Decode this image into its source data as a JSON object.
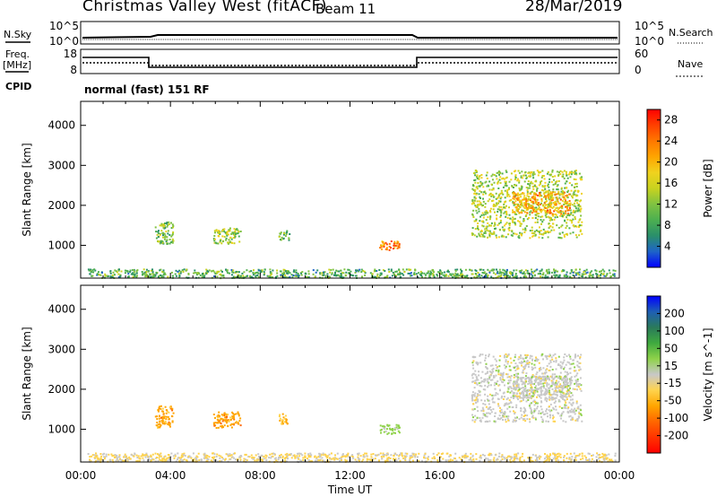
{
  "header": {
    "radar": "Christmas Valley West (fitACF)",
    "beam": "Beam 11",
    "date": "28/Mar/2019"
  },
  "params": {
    "nsky_label": "N.Sky",
    "nsearch_label": "N.Search",
    "freq_label_1": "Freq.",
    "freq_label_2": "[MHz]",
    "nave_label": "Nave",
    "cpid_label": "CPID",
    "cpid_text": "normal (fast) 151 RF",
    "noise_ticks_left": [
      "10^5",
      "10^0"
    ],
    "noise_ticks_right": [
      "10^5",
      "10^0"
    ],
    "freq_ticks": [
      "18",
      "8"
    ],
    "nave_ticks": [
      "60",
      "0"
    ]
  },
  "chart_data": [
    {
      "type": "heatmap",
      "title": "",
      "xlabel": "",
      "ylabel": "Slant Range [km]",
      "xlim": [
        0,
        24
      ],
      "ylim": [
        180,
        4600
      ],
      "yticks": [
        "1000",
        "2000",
        "3000",
        "4000"
      ],
      "colorbar": {
        "label": "Power [dB]",
        "ticks": [
          "4",
          "8",
          "12",
          "16",
          "20",
          "24",
          "28"
        ],
        "range": [
          0,
          30
        ],
        "colors": [
          "#0000ff",
          "#1e64c8",
          "#2a8f6a",
          "#4caf50",
          "#7fc241",
          "#c8d21f",
          "#f0d21e",
          "#ffa500",
          "#ff7800",
          "#ff4000",
          "#ff0000"
        ]
      },
      "echo_regions": [
        {
          "t": [
            0.3,
            23.8
          ],
          "r": [
            200,
            420
          ],
          "value": 10
        },
        {
          "t": [
            3.3,
            4.1
          ],
          "r": [
            1050,
            1600
          ],
          "value": 12
        },
        {
          "t": [
            5.9,
            7.1
          ],
          "r": [
            1050,
            1450
          ],
          "value": 14
        },
        {
          "t": [
            8.8,
            9.3
          ],
          "r": [
            1150,
            1400
          ],
          "value": 10
        },
        {
          "t": [
            13.3,
            14.2
          ],
          "r": [
            880,
            1130
          ],
          "value": 22
        },
        {
          "t": [
            17.4,
            22.3
          ],
          "r": [
            1200,
            2900
          ],
          "value": 14
        },
        {
          "t": [
            19.2,
            21.8
          ],
          "r": [
            1800,
            2350
          ],
          "value": 20
        }
      ]
    },
    {
      "type": "heatmap",
      "title": "",
      "xlabel": "Time UT",
      "ylabel": "Slant Range [km]",
      "xlim": [
        0,
        24
      ],
      "ylim": [
        180,
        4600
      ],
      "xticks": [
        "00:00",
        "04:00",
        "08:00",
        "12:00",
        "16:00",
        "20:00",
        "00:00"
      ],
      "yticks": [
        "1000",
        "2000",
        "3000",
        "4000"
      ],
      "colorbar": {
        "label": "Velocity [m s^-1]",
        "ticks": [
          "200",
          "100",
          "50",
          "15",
          "-15",
          "-50",
          "-100",
          "-200"
        ],
        "range": [
          -250,
          250
        ],
        "colors": [
          "#ff0000",
          "#ff3300",
          "#ff6600",
          "#ffa500",
          "#ffd34d",
          "#c8c8c8",
          "#8fd24a",
          "#3faa3f",
          "#2a7a5a",
          "#1e5fb4",
          "#0000ff"
        ]
      },
      "echo_regions": [
        {
          "t": [
            0.3,
            23.8
          ],
          "r": [
            200,
            420
          ],
          "value": -30
        },
        {
          "t": [
            3.3,
            4.1
          ],
          "r": [
            1050,
            1600
          ],
          "value": -90
        },
        {
          "t": [
            5.9,
            7.1
          ],
          "r": [
            1050,
            1450
          ],
          "value": -90
        },
        {
          "t": [
            8.8,
            9.3
          ],
          "r": [
            1150,
            1400
          ],
          "value": -70
        },
        {
          "t": [
            13.3,
            14.2
          ],
          "r": [
            880,
            1130
          ],
          "value": 40
        },
        {
          "t": [
            17.4,
            22.3
          ],
          "r": [
            1200,
            2900
          ],
          "value": 0
        },
        {
          "t": [
            19.2,
            21.8
          ],
          "r": [
            1800,
            2350
          ],
          "value": 0
        }
      ]
    }
  ]
}
